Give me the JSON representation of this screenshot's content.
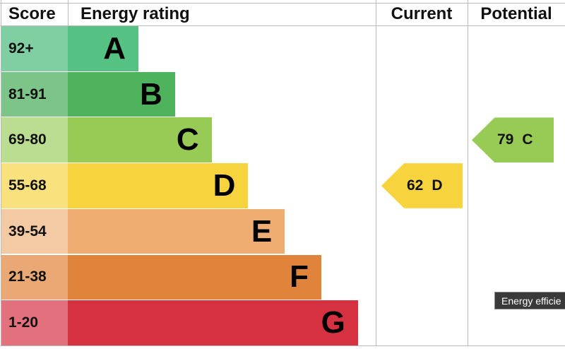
{
  "chart_data": {
    "type": "epc",
    "headers": {
      "score": "Score",
      "rating": "Energy rating",
      "current": "Current",
      "potential": "Potential"
    },
    "bands": [
      {
        "score": "92+",
        "letter": "A",
        "color": "#55c284",
        "score_color": "#80cfa2"
      },
      {
        "score": "81-91",
        "letter": "B",
        "color": "#4fb35d",
        "score_color": "#7dc489"
      },
      {
        "score": "69-80",
        "letter": "C",
        "color": "#97cb55",
        "score_color": "#bbdd91"
      },
      {
        "score": "55-68",
        "letter": "D",
        "color": "#f7d43e",
        "score_color": "#f9e27d"
      },
      {
        "score": "39-54",
        "letter": "E",
        "color": "#efad72",
        "score_color": "#f4caa4"
      },
      {
        "score": "21-38",
        "letter": "F",
        "color": "#e0843b",
        "score_color": "#e9a874"
      },
      {
        "score": "1-20",
        "letter": "G",
        "color": "#d53140",
        "score_color": "#e3717d"
      }
    ],
    "current": {
      "score": "62",
      "letter": "D"
    },
    "potential": {
      "score": "79",
      "letter": "C"
    },
    "tooltip": "Energy efficie"
  }
}
